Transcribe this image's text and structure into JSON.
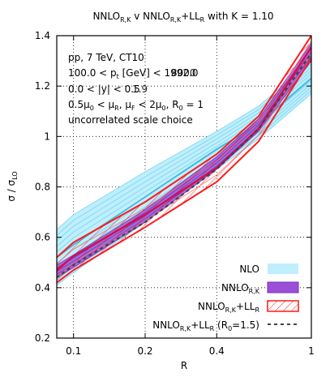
{
  "chart_data": {
    "type": "line",
    "title": "NNLO_{R,K} v NNLO_{R,K}+LL_R with K = 1.10",
    "xlabel": "R",
    "ylabel": "σ / σ_LO",
    "x_scale": "log",
    "xlim": [
      0.085,
      1.0
    ],
    "ylim": [
      0.2,
      1.4
    ],
    "grid": true,
    "x_ticks": [
      {
        "value": 0.1,
        "label": "0.1"
      },
      {
        "value": 0.2,
        "label": "0.2"
      },
      {
        "value": 0.4,
        "label": "0.4"
      },
      {
        "value": 1.0,
        "label": "1"
      }
    ],
    "y_ticks": [
      {
        "value": 0.2,
        "label": "0.2"
      },
      {
        "value": 0.4,
        "label": "0.4"
      },
      {
        "value": 0.6,
        "label": "0.6"
      },
      {
        "value": 0.8,
        "label": "0.8"
      },
      {
        "value": 1.0,
        "label": "1"
      },
      {
        "value": 1.2,
        "label": "1.2"
      },
      {
        "value": 1.4,
        "label": "1.4"
      }
    ],
    "annotations": [
      "pp, 7 TeV, CT10",
      "100.0 < p_t [GeV] < 1992.0 / 8000",
      "0.0 < |y| < 0.5 / 1.9",
      "0.5μ_0 < μ_R, μ_F < 2μ_0, R_0 = 1",
      "uncorrelated scale choice"
    ],
    "legend_position": "bottom-right",
    "series": [
      {
        "name": "NLO",
        "style": "band",
        "color": "#7dd8f0",
        "x": [
          0.085,
          0.1,
          0.2,
          0.4,
          0.6,
          1.0
        ],
        "upper": [
          0.63,
          0.69,
          0.86,
          1.02,
          1.12,
          1.3
        ],
        "lower": [
          0.41,
          0.46,
          0.66,
          0.87,
          0.99,
          1.17
        ],
        "central": [
          0.52,
          0.57,
          0.76,
          0.95,
          1.05,
          1.23
        ]
      },
      {
        "name": "NNLO_{R,K}",
        "style": "band",
        "color": "#9b4fd8",
        "x": [
          0.085,
          0.1,
          0.2,
          0.4,
          0.6,
          1.0
        ],
        "upper": [
          0.49,
          0.53,
          0.71,
          0.92,
          1.07,
          1.37
        ],
        "lower": [
          0.44,
          0.48,
          0.66,
          0.87,
          1.02,
          1.3
        ],
        "central": [
          0.465,
          0.505,
          0.685,
          0.895,
          1.045,
          1.335
        ]
      },
      {
        "name": "NNLO_{R,K}+LL_R",
        "style": "hatched-band",
        "color": "#ff1a1a",
        "x": [
          0.085,
          0.1,
          0.2,
          0.4,
          0.6,
          1.0
        ],
        "upper": [
          0.52,
          0.58,
          0.74,
          0.93,
          1.08,
          1.4
        ],
        "lower": [
          0.42,
          0.47,
          0.64,
          0.82,
          0.98,
          1.31
        ],
        "central": [
          0.47,
          0.525,
          0.69,
          0.875,
          1.03,
          1.355
        ]
      },
      {
        "name": "NNLO_{R,K}+LL_R (R_0=1.5)",
        "style": "dashed",
        "color": "#404050",
        "x": [
          0.085,
          0.1,
          0.2,
          0.4,
          0.6,
          1.0
        ],
        "y": [
          0.44,
          0.49,
          0.66,
          0.87,
          1.03,
          1.33
        ]
      }
    ]
  }
}
